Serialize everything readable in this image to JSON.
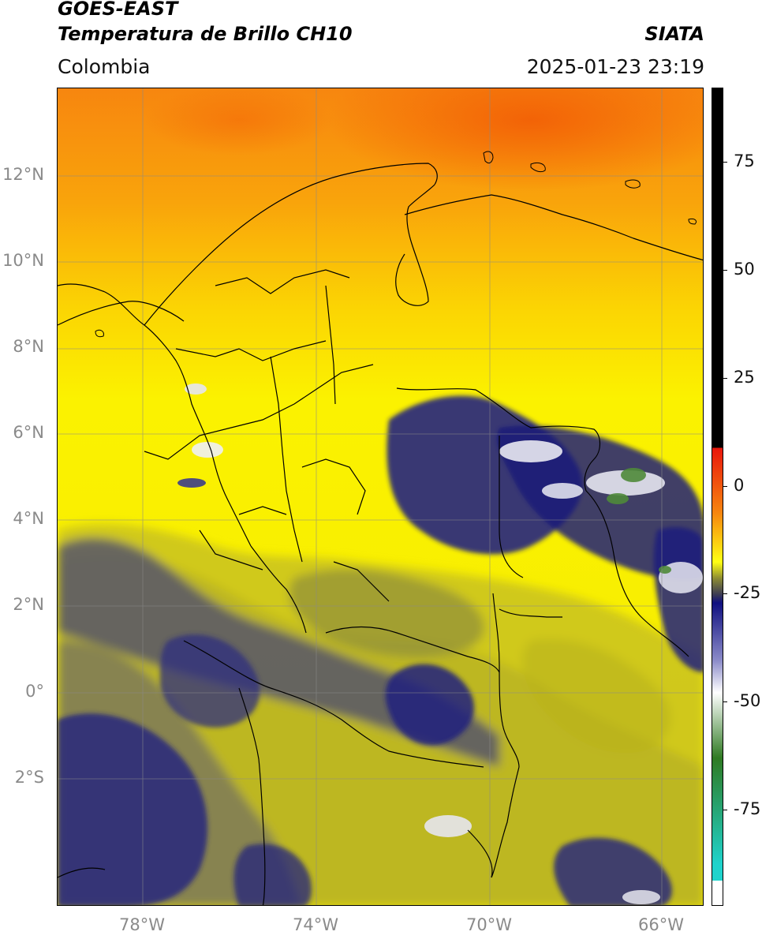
{
  "header": {
    "satellite": "GOES-EAST",
    "product": "Temperatura de Brillo CH10",
    "region": "Colombia",
    "agency": "SIATA",
    "timestamp": "2025-01-23 23:19"
  },
  "axes": {
    "lat_labels": [
      "12°N",
      "10°N",
      "8°N",
      "6°N",
      "4°N",
      "2°N",
      "0°",
      "2°S"
    ],
    "lon_labels": [
      "78°W",
      "74°W",
      "70°W",
      "66°W"
    ]
  },
  "colorbar": {
    "labels": [
      "75",
      "50",
      "25",
      "0",
      "-25",
      "-50",
      "-75"
    ],
    "colors": {
      "black": "#000000",
      "red": "#e8160c",
      "orange": "#f7860f",
      "yellow": "#ffff14",
      "olive": "#8c8b33",
      "darkgray": "#3a3a55",
      "navy": "#101080",
      "white": "#ffffff",
      "green": "#2f7a22",
      "cyan": "#1fd3cc"
    }
  },
  "map": {
    "colors": {
      "orange_top": "#f46a08",
      "orange": "#f99a0a",
      "yellow": "#fbf000",
      "olive": "#b8b31f",
      "gray": "#5b5b55",
      "navy": "#21217e",
      "white_cloud": "#f2f2f8",
      "green_core": "#4f8a3a"
    }
  }
}
